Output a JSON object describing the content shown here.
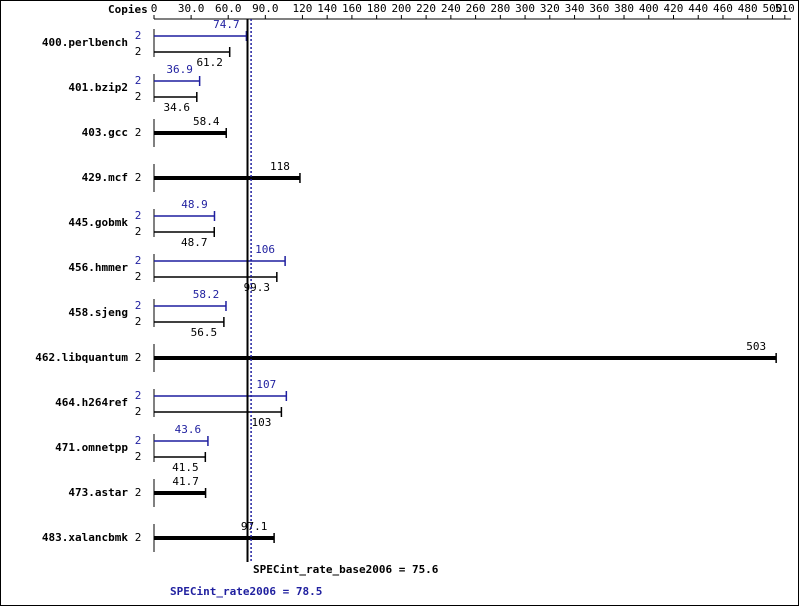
{
  "chart_data": {
    "type": "bar",
    "orientation": "horizontal",
    "axis_label": "Copies",
    "xlim": [
      0,
      515
    ],
    "xticks": [
      0,
      {
        "value": 30,
        "label": "30.0"
      },
      {
        "value": 60,
        "label": "60.0"
      },
      {
        "value": 90,
        "label": "90.0"
      },
      120,
      140,
      160,
      180,
      200,
      220,
      240,
      260,
      280,
      300,
      320,
      340,
      360,
      380,
      400,
      420,
      440,
      460,
      480,
      500,
      510
    ],
    "categories": [
      "400.perlbench",
      "401.bzip2",
      "403.gcc",
      "429.mcf",
      "445.gobmk",
      "456.hmmer",
      "458.sjeng",
      "462.libquantum",
      "464.h264ref",
      "471.omnetpp",
      "473.astar",
      "483.xalancbmk"
    ],
    "series": [
      {
        "name": "SPECint_rate2006",
        "color": "#1f1f9f",
        "copies": [
          2,
          2,
          null,
          null,
          2,
          2,
          2,
          null,
          2,
          2,
          null,
          null
        ],
        "values": [
          74.7,
          36.9,
          null,
          null,
          48.9,
          106,
          58.2,
          null,
          107,
          43.6,
          null,
          null
        ]
      },
      {
        "name": "SPECint_rate_base2006",
        "color": "#000000",
        "copies": [
          2,
          2,
          2,
          2,
          2,
          2,
          2,
          2,
          2,
          2,
          2,
          2
        ],
        "values": [
          61.2,
          34.6,
          58.4,
          118,
          48.7,
          99.3,
          56.5,
          503,
          103,
          41.5,
          41.7,
          97.1
        ]
      }
    ],
    "reference_lines": [
      {
        "label": "SPECint_rate_base2006 = 75.6",
        "value": 75.6,
        "color": "#000000",
        "style": "solid"
      },
      {
        "label": "SPECint_rate2006 = 78.5",
        "value": 78.5,
        "color": "#1f1f9f",
        "style": "dotted"
      }
    ]
  }
}
